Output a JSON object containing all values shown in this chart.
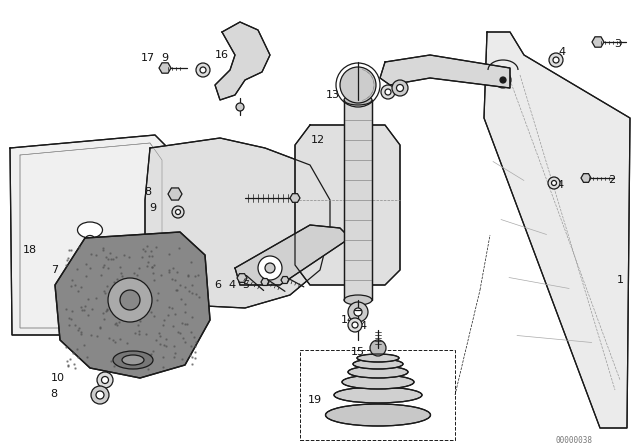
{
  "bg_color": "#ffffff",
  "line_color": "#1a1a1a",
  "watermark": "00000038",
  "lw": 0.9,
  "gray_fill": "#e8e8e8",
  "dark_fill": "#555555",
  "mid_fill": "#bbbbbb",
  "hatched_fill": "#888888"
}
